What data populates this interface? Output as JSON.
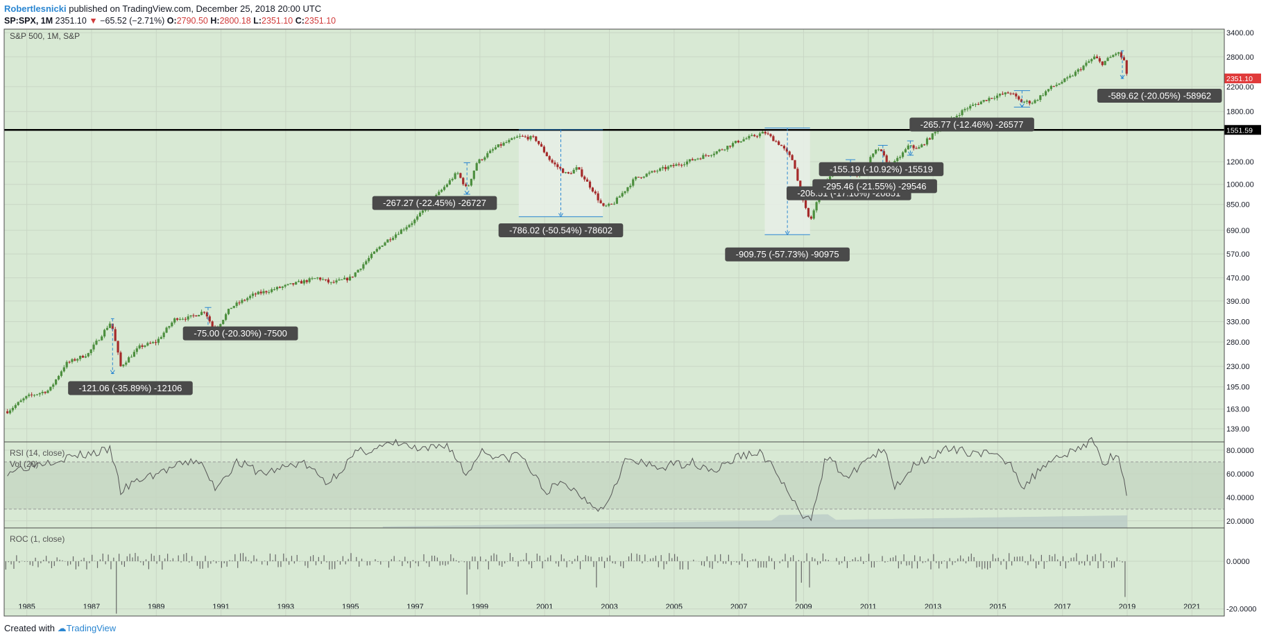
{
  "header": {
    "author": "Robertlesnicki",
    "published": "published on TradingView.com, December 25, 2018 20:00 UTC"
  },
  "ohlc": {
    "symbol": "SP:SPX, 1M",
    "last": "2351.10",
    "arrow": "▼",
    "change": "−65.52 (−2.71%)",
    "o_label": "O:",
    "o": "2790.50",
    "h_label": "H:",
    "h": "2800.18",
    "l_label": "L:",
    "l": "2351.10",
    "c_label": "C:",
    "c": "2351.10"
  },
  "footer": {
    "created_with": "Created with",
    "brand": "TradingView"
  },
  "colors": {
    "pane_bg": "#d8e9d4",
    "grid": "#c9d6c5",
    "up": "#4d8f3f",
    "down": "#a52a2a",
    "accent_blue": "#2a86d1",
    "label_bg": "#4a4a4a",
    "last_price_bg": "#e03a3a"
  },
  "chart_data": [
    {
      "type": "candlestick",
      "pane_label": "S&P 500, 1M, S&P",
      "x_range": [
        1984.3,
        2022.0
      ],
      "y_scale": "log",
      "y_range": [
        125,
        3500
      ],
      "y_ticks": [
        "3400.00",
        "2800.00",
        "2200.00",
        "1800.00",
        "1200.00",
        "1000.00",
        "850.00",
        "690.00",
        "570.00",
        "470.00",
        "390.00",
        "330.00",
        "280.00",
        "230.00",
        "195.00",
        "163.00",
        "139.00"
      ],
      "y_tick_values": [
        3400,
        2800,
        2200,
        1800,
        1200,
        1000,
        850,
        690,
        570,
        470,
        390,
        330,
        280,
        230,
        195,
        163,
        139
      ],
      "x_ticks": [
        "1985",
        "1987",
        "1989",
        "1991",
        "1993",
        "1995",
        "1997",
        "1999",
        "2001",
        "2003",
        "2005",
        "2007",
        "2009",
        "2011",
        "2013",
        "2015",
        "2017",
        "2019",
        "2021"
      ],
      "x_tick_values": [
        1985,
        1987,
        1989,
        1991,
        1993,
        1995,
        1997,
        1999,
        2001,
        2003,
        2005,
        2007,
        2009,
        2011,
        2013,
        2015,
        2017,
        2019,
        2021
      ],
      "anchors": [
        [
          1984.4,
          160
        ],
        [
          1985.0,
          180
        ],
        [
          1985.7,
          190
        ],
        [
          1986.2,
          235
        ],
        [
          1986.9,
          255
        ],
        [
          1987.6,
          330
        ],
        [
          1987.9,
          230
        ],
        [
          1988.5,
          270
        ],
        [
          1989.0,
          280
        ],
        [
          1989.6,
          340
        ],
        [
          1990.0,
          340
        ],
        [
          1990.5,
          360
        ],
        [
          1990.8,
          305
        ],
        [
          1991.3,
          370
        ],
        [
          1992.0,
          410
        ],
        [
          1993.0,
          440
        ],
        [
          1994.0,
          470
        ],
        [
          1994.4,
          450
        ],
        [
          1995.0,
          470
        ],
        [
          1996.0,
          620
        ],
        [
          1997.0,
          750
        ],
        [
          1997.8,
          950
        ],
        [
          1998.3,
          1100
        ],
        [
          1998.6,
          960
        ],
        [
          1998.9,
          1190
        ],
        [
          1999.5,
          1350
        ],
        [
          2000.2,
          1470
        ],
        [
          2000.7,
          1450
        ],
        [
          2001.2,
          1200
        ],
        [
          2001.7,
          1080
        ],
        [
          2002.0,
          1140
        ],
        [
          2002.5,
          950
        ],
        [
          2002.8,
          830
        ],
        [
          2003.1,
          850
        ],
        [
          2003.8,
          1050
        ],
        [
          2004.5,
          1120
        ],
        [
          2005.3,
          1190
        ],
        [
          2006.3,
          1300
        ],
        [
          2007.0,
          1420
        ],
        [
          2007.8,
          1520
        ],
        [
          2008.3,
          1370
        ],
        [
          2008.7,
          1200
        ],
        [
          2008.9,
          920
        ],
        [
          2009.2,
          740
        ],
        [
          2009.6,
          1000
        ],
        [
          2010.2,
          1160
        ],
        [
          2010.4,
          1100
        ],
        [
          2010.7,
          1080
        ],
        [
          2011.3,
          1340
        ],
        [
          2011.7,
          1150
        ],
        [
          2012.3,
          1380
        ],
        [
          2012.5,
          1320
        ],
        [
          2013.2,
          1570
        ],
        [
          2014.0,
          1840
        ],
        [
          2014.8,
          2020
        ],
        [
          2015.4,
          2100
        ],
        [
          2015.7,
          1950
        ],
        [
          2016.1,
          1940
        ],
        [
          2016.6,
          2170
        ],
        [
          2017.2,
          2360
        ],
        [
          2018.0,
          2800
        ],
        [
          2018.2,
          2640
        ],
        [
          2018.7,
          2910
        ],
        [
          2018.9,
          2711
        ],
        [
          2019.0,
          2351
        ]
      ],
      "horizontal_line": {
        "value": 1551.59,
        "label": "1551.59"
      },
      "last_price": {
        "value": 2351.1,
        "label": "2351.10"
      },
      "measurements": [
        {
          "label": "-121.06 (-35.89%) -12106",
          "x1": 1987.6,
          "x2": 1987.7,
          "y_top": 338,
          "y_bot": 217,
          "lx": 1988.2,
          "ly": 193
        },
        {
          "label": "-75.00 (-20.30%) -7500",
          "x1": 1990.5,
          "x2": 1990.7,
          "y_top": 370,
          "y_bot": 295,
          "lx": 1991.6,
          "ly": 300
        },
        {
          "label": "-267.27 (-22.45%) -26727",
          "x1": 1998.5,
          "x2": 1998.7,
          "y_top": 1190,
          "y_bot": 923,
          "lx": 1997.6,
          "ly": 860
        },
        {
          "label": "-786.02 (-50.54%) -78602",
          "x1": 2000.2,
          "x2": 2002.8,
          "y_top": 1555,
          "y_bot": 770,
          "lx": 2001.5,
          "ly": 690,
          "box": true
        },
        {
          "label": "-909.75 (-57.73%) -90975",
          "x1": 2007.8,
          "x2": 2009.2,
          "y_top": 1576,
          "y_bot": 666,
          "lx": 2008.5,
          "ly": 568,
          "box": true
        },
        {
          "label": "-208.51 (-17.10%) -20851",
          "x1": 2010.3,
          "x2": 2010.6,
          "y_top": 1220,
          "y_bot": 1011,
          "lx": 2010.4,
          "ly": 930
        },
        {
          "label": "-295.46 (-21.55%) -29546",
          "x1": 2011.3,
          "x2": 2011.6,
          "y_top": 1370,
          "y_bot": 1075,
          "lx": 2011.2,
          "ly": 985
        },
        {
          "label": "-155.19 (-10.92%) -15519",
          "x1": 2012.2,
          "x2": 2012.4,
          "y_top": 1420,
          "y_bot": 1265,
          "lx": 2011.4,
          "ly": 1130
        },
        {
          "label": "-265.77 (-12.46%) -26577",
          "x1": 2015.5,
          "x2": 2016.0,
          "y_top": 2130,
          "y_bot": 1865,
          "lx": 2014.2,
          "ly": 1620
        },
        {
          "label": "-589.62 (-20.05%) -58962",
          "x1": 2018.8,
          "x2": 2018.9,
          "y_top": 2940,
          "y_bot": 2350,
          "lx": 2020.0,
          "ly": 2045
        }
      ]
    },
    {
      "type": "line",
      "pane_label": "RSI (14, close)",
      "overlay_label": "Vol (20)",
      "y_range": [
        14,
        87
      ],
      "y_ticks": [
        "80.0000",
        "60.0000",
        "40.0000",
        "20.0000"
      ],
      "y_tick_values": [
        80,
        60,
        40,
        20
      ],
      "band": [
        30,
        70
      ],
      "anchors": [
        [
          1984.4,
          62
        ],
        [
          1985.5,
          70
        ],
        [
          1986.5,
          75
        ],
        [
          1987.6,
          80
        ],
        [
          1987.9,
          45
        ],
        [
          1988.5,
          55
        ],
        [
          1989.5,
          65
        ],
        [
          1990.3,
          72
        ],
        [
          1990.8,
          48
        ],
        [
          1991.5,
          70
        ],
        [
          1992.3,
          60
        ],
        [
          1993.5,
          70
        ],
        [
          1994.3,
          52
        ],
        [
          1995.2,
          78
        ],
        [
          1996.5,
          86
        ],
        [
          1997.2,
          79
        ],
        [
          1998.0,
          85
        ],
        [
          1998.6,
          58
        ],
        [
          1999.0,
          80
        ],
        [
          1999.8,
          72
        ],
        [
          2000.2,
          78
        ],
        [
          2001.0,
          45
        ],
        [
          2001.6,
          52
        ],
        [
          2002.3,
          38
        ],
        [
          2002.8,
          29
        ],
        [
          2003.5,
          72
        ],
        [
          2004.5,
          65
        ],
        [
          2005.5,
          70
        ],
        [
          2006.3,
          63
        ],
        [
          2007.0,
          75
        ],
        [
          2007.7,
          78
        ],
        [
          2008.3,
          55
        ],
        [
          2008.9,
          25
        ],
        [
          2009.2,
          20
        ],
        [
          2009.7,
          75
        ],
        [
          2010.4,
          55
        ],
        [
          2010.8,
          70
        ],
        [
          2011.5,
          80
        ],
        [
          2011.8,
          48
        ],
        [
          2012.5,
          70
        ],
        [
          2013.4,
          80
        ],
        [
          2014.5,
          78
        ],
        [
          2015.4,
          70
        ],
        [
          2015.8,
          48
        ],
        [
          2016.5,
          70
        ],
        [
          2017.3,
          80
        ],
        [
          2018.0,
          88
        ],
        [
          2018.2,
          68
        ],
        [
          2018.7,
          78
        ],
        [
          2019.0,
          42
        ]
      ]
    },
    {
      "type": "bar",
      "pane_label": "ROC (1, close)",
      "y_range": [
        -23,
        14
      ],
      "y_ticks": [
        "0.0000",
        "-20.0000"
      ],
      "y_tick_values": [
        0,
        -20
      ],
      "spikes": [
        [
          1987.8,
          -22
        ],
        [
          1998.6,
          -14
        ],
        [
          2002.6,
          -11
        ],
        [
          2008.8,
          -17
        ],
        [
          2008.9,
          -9
        ],
        [
          2009.2,
          -11
        ],
        [
          2018.9,
          -15
        ]
      ]
    }
  ]
}
